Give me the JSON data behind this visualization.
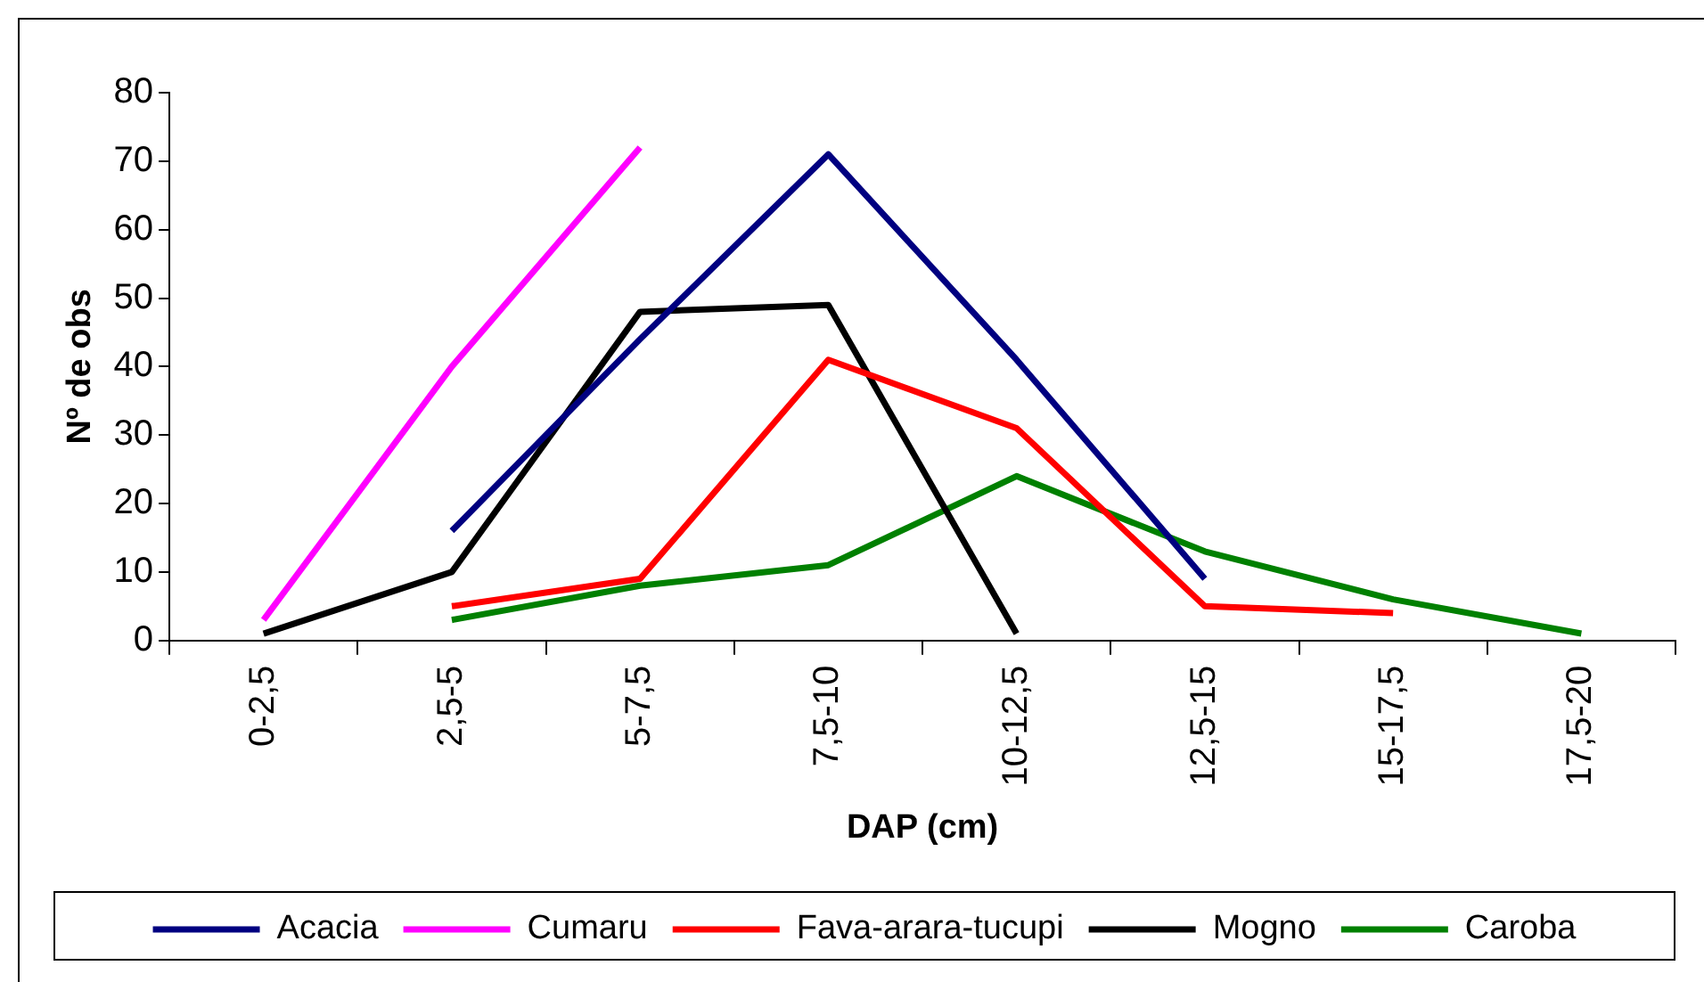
{
  "chart_data": {
    "type": "line",
    "xlabel": "DAP (cm)",
    "ylabel": "Nº de obs",
    "categories": [
      "0-2,5",
      "2,5-5",
      "5-7,5",
      "7,5-10",
      "10-12,5",
      "12,5-15",
      "15-17,5",
      "17,5-20"
    ],
    "ylim": [
      0,
      80
    ],
    "yticks": [
      0,
      10,
      20,
      30,
      40,
      50,
      60,
      70,
      80
    ],
    "grid": false,
    "legend": "bottom",
    "marker": "none",
    "line_style": "solid",
    "series": [
      {
        "name": "Acacia",
        "color": "#000080",
        "values": [
          null,
          16,
          44,
          71,
          41,
          9,
          null,
          null
        ]
      },
      {
        "name": "Cumaru",
        "color": "#ff00ff",
        "values": [
          3,
          40,
          72,
          null,
          null,
          null,
          null,
          null
        ]
      },
      {
        "name": "Fava-arara-tucupi",
        "color": "#ff0000",
        "values": [
          null,
          5,
          9,
          41,
          31,
          5,
          4,
          null
        ]
      },
      {
        "name": "Mogno",
        "color": "#000000",
        "values": [
          1,
          10,
          48,
          49,
          1,
          null,
          null,
          null
        ]
      },
      {
        "name": "Caroba",
        "color": "#008000",
        "values": [
          null,
          3,
          8,
          11,
          24,
          13,
          6,
          1
        ]
      }
    ]
  }
}
